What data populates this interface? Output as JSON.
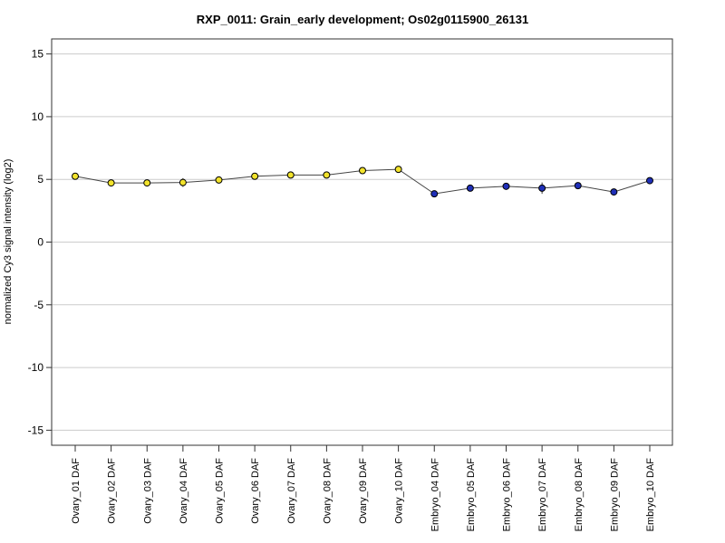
{
  "chart_data": {
    "type": "line",
    "title": "RXP_0011: Grain_early development; Os02g0115900_26131",
    "xlabel": "",
    "ylabel": "normalized Cy3 signal intensity (log2)",
    "ylim": [
      -16.2,
      16.2
    ],
    "yticks": [
      15,
      10,
      5,
      0,
      -5,
      -10,
      -15
    ],
    "grid": true,
    "categories": [
      "Ovary_01 DAF",
      "Ovary_02 DAF",
      "Ovary_03 DAF",
      "Ovary_04 DAF",
      "Ovary_05 DAF",
      "Ovary_06 DAF",
      "Ovary_07 DAF",
      "Ovary_08 DAF",
      "Ovary_09 DAF",
      "Ovary_10 DAF",
      "Embryo_04 DAF",
      "Embryo_05 DAF",
      "Embryo_06 DAF",
      "Embryo_07 DAF",
      "Embryo_08 DAF",
      "Embryo_09 DAF",
      "Embryo_10 DAF"
    ],
    "values": [
      5.25,
      4.72,
      4.72,
      4.75,
      4.95,
      5.25,
      5.35,
      5.35,
      5.7,
      5.8,
      3.85,
      4.3,
      4.45,
      4.3,
      4.5,
      4.0,
      4.9
    ],
    "error": [
      0.1,
      0.1,
      0.1,
      0.35,
      0.1,
      0.1,
      0.1,
      0.1,
      0.1,
      0.1,
      0.1,
      0.1,
      0.1,
      0.45,
      0.1,
      0.1,
      0.1
    ],
    "point_colors": [
      "#f2e32c",
      "#f2e32c",
      "#f2e32c",
      "#f2e32c",
      "#f2e32c",
      "#f2e32c",
      "#f2e32c",
      "#f2e32c",
      "#f2e32c",
      "#f2e32c",
      "#1f2fb8",
      "#1f2fb8",
      "#1f2fb8",
      "#1f2fb8",
      "#1f2fb8",
      "#1f2fb8",
      "#1f2fb8"
    ],
    "line_color": "#444444",
    "grid_color": "#cccccc"
  }
}
